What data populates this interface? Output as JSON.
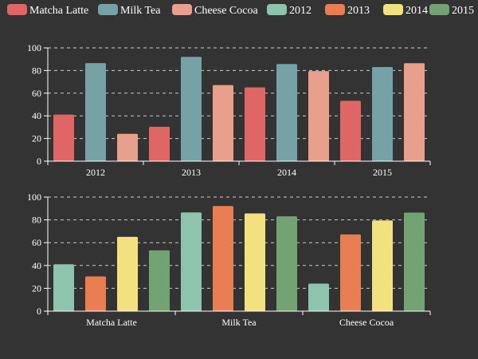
{
  "legend": {
    "items": [
      {
        "label": "Matcha Latte",
        "color": "#e06666"
      },
      {
        "label": "Milk Tea",
        "color": "#76a1a6"
      },
      {
        "label": "Cheese Cocoa",
        "color": "#e8a08c"
      },
      {
        "label": "2012",
        "color": "#8ec3ad"
      },
      {
        "label": "2013",
        "color": "#ea7e53"
      },
      {
        "label": "2014",
        "color": "#f3e07e"
      },
      {
        "label": "2015",
        "color": "#73a373"
      }
    ]
  },
  "colors": {
    "background": "#333333",
    "axis": "#ffffff",
    "gridline": "#cccccc"
  },
  "chart_data": [
    {
      "type": "bar",
      "grid": true,
      "ylim": [
        0,
        100
      ],
      "yticks": [
        0,
        20,
        40,
        60,
        80,
        100
      ],
      "categories": [
        "2012",
        "2013",
        "2014",
        "2015"
      ],
      "series": [
        {
          "name": "Matcha Latte",
          "color": "#e06666",
          "values": [
            41.1,
            30.4,
            65.1,
            53.3
          ]
        },
        {
          "name": "Milk Tea",
          "color": "#76a1a6",
          "values": [
            86.5,
            92.1,
            85.7,
            83.1
          ]
        },
        {
          "name": "Cheese Cocoa",
          "color": "#e8a08c",
          "values": [
            24.1,
            67.2,
            79.5,
            86.4
          ]
        }
      ]
    },
    {
      "type": "bar",
      "grid": true,
      "ylim": [
        0,
        100
      ],
      "yticks": [
        0,
        20,
        40,
        60,
        80,
        100
      ],
      "categories": [
        "Matcha Latte",
        "Milk Tea",
        "Cheese Cocoa"
      ],
      "series": [
        {
          "name": "2012",
          "color": "#8ec3ad",
          "values": [
            41.1,
            86.5,
            24.1
          ]
        },
        {
          "name": "2013",
          "color": "#ea7e53",
          "values": [
            30.4,
            92.1,
            67.2
          ]
        },
        {
          "name": "2014",
          "color": "#f3e07e",
          "values": [
            65.1,
            85.7,
            79.5
          ]
        },
        {
          "name": "2015",
          "color": "#73a373",
          "values": [
            53.3,
            83.1,
            86.4
          ]
        }
      ]
    }
  ]
}
